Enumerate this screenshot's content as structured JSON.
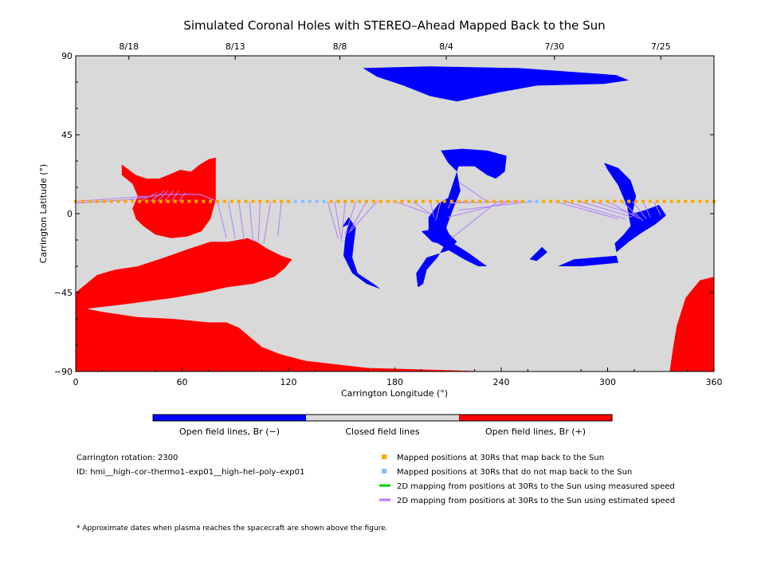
{
  "chart_data": {
    "type": "map",
    "title": "Simulated Coronal Holes with STEREO–Ahead Mapped Back to the Sun",
    "xlabel": "Carrington Longitude (°)",
    "ylabel": "Carrington Latitude (°)",
    "xlim": [
      0,
      360
    ],
    "ylim": [
      -90,
      90
    ],
    "x_ticks": [
      "0",
      "60",
      "120",
      "180",
      "240",
      "300",
      "360"
    ],
    "y_ticks": [
      "90",
      "45",
      "0",
      "−45",
      "−90"
    ],
    "date_axis": {
      "labels": [
        "8/18",
        "8/13",
        "8/8",
        "8/4",
        "7/30",
        "7/25"
      ],
      "longitudes": [
        30,
        90,
        149,
        209,
        270,
        330
      ]
    },
    "colors": {
      "closed": "#d9d9d9",
      "open_negative": "#0000ff",
      "open_positive": "#ff0000",
      "mapped": "#ffa500",
      "not_mapped": "#80c0ff",
      "measured_speed": "#00cc00",
      "estimated_speed": "#b080ff"
    },
    "colorbar": [
      {
        "label": "Open field lines, Br (−)",
        "color": "#0000ff"
      },
      {
        "label": "Closed field lines",
        "color": "#d9d9d9"
      },
      {
        "label": "Open field lines, Br (+)",
        "color": "#ff0000"
      }
    ],
    "trajectory_latitude": 7,
    "mapped_points": {
      "longitude_step": 4,
      "not_mapped_ranges": [
        [
          122,
          142
        ],
        [
          254,
          260
        ]
      ]
    },
    "regions": {
      "negative": [
        {
          "name": "north polar cap",
          "points": [
            [
              162,
              83
            ],
            [
              200,
              84
            ],
            [
              250,
              83
            ],
            [
              305,
              79
            ],
            [
              312,
              76
            ],
            [
              298,
              74
            ],
            [
              260,
              73
            ],
            [
              238,
              69
            ],
            [
              215,
              64
            ],
            [
              200,
              67
            ],
            [
              185,
              73
            ],
            [
              170,
              78
            ]
          ]
        },
        {
          "name": "central arc",
          "points": [
            [
              206,
              36
            ],
            [
              218,
              37
            ],
            [
              232,
              36
            ],
            [
              243,
              33
            ],
            [
              242,
              24
            ],
            [
              237,
              20
            ],
            [
              232,
              22
            ],
            [
              225,
              27
            ],
            [
              216,
              27
            ],
            [
              213,
              18
            ],
            [
              210,
              9
            ],
            [
              205,
              6
            ],
            [
              199,
              -2
            ],
            [
              199,
              -10
            ],
            [
              203,
              -16
            ],
            [
              209,
              -20
            ],
            [
              219,
              -26
            ],
            [
              227,
              -30
            ],
            [
              232,
              -30
            ],
            [
              221,
              -22
            ],
            [
              213,
              -17
            ],
            [
              209,
              -8
            ],
            [
              213,
              3
            ],
            [
              217,
              13
            ],
            [
              215,
              24
            ],
            [
              210,
              29
            ]
          ]
        },
        {
          "name": "southern lobe",
          "points": [
            [
              195,
              -10
            ],
            [
              207,
              -8
            ],
            [
              215,
              -16
            ],
            [
              210,
              -21
            ],
            [
              198,
              -25
            ],
            [
              192,
              -34
            ],
            [
              193,
              -42
            ],
            [
              196,
              -40
            ],
            [
              198,
              -32
            ],
            [
              204,
              -25
            ],
            [
              208,
              -18
            ],
            [
              201,
              -16
            ]
          ]
        },
        {
          "name": "eastern arc",
          "points": [
            [
              150,
              -8
            ],
            [
              154,
              -6
            ],
            [
              152,
              -14
            ],
            [
              151,
              -24
            ],
            [
              156,
              -34
            ],
            [
              164,
              -40
            ],
            [
              172,
              -43
            ],
            [
              168,
              -40
            ],
            [
              159,
              -34
            ],
            [
              156,
              -25
            ],
            [
              157,
              -16
            ],
            [
              158,
              -8
            ],
            [
              154,
              -2
            ]
          ]
        },
        {
          "name": "western hook",
          "points": [
            [
              298,
              29
            ],
            [
              306,
              26
            ],
            [
              313,
              19
            ],
            [
              316,
              10
            ],
            [
              314,
              0
            ],
            [
              321,
              2
            ],
            [
              329,
              5
            ],
            [
              333,
              -1
            ],
            [
              327,
              -6
            ],
            [
              319,
              -11
            ],
            [
              312,
              -16
            ],
            [
              305,
              -22
            ],
            [
              304,
              -17
            ],
            [
              309,
              -12
            ],
            [
              313,
              -7
            ],
            [
              311,
              4
            ],
            [
              306,
              16
            ],
            [
              300,
              25
            ]
          ]
        },
        {
          "name": "small spot",
          "points": [
            [
              281,
              -26
            ],
            [
              305,
              -24
            ],
            [
              306,
              -28
            ],
            [
              285,
              -30
            ],
            [
              272,
              -30
            ]
          ]
        },
        {
          "name": "tiny spot",
          "points": [
            [
              256,
              -26
            ],
            [
              263,
              -19
            ],
            [
              266,
              -22
            ],
            [
              260,
              -27
            ]
          ]
        }
      ],
      "positive": [
        {
          "name": "southern band",
          "points": [
            [
              0,
              -45
            ],
            [
              6,
              -40
            ],
            [
              12,
              -35
            ],
            [
              22,
              -32
            ],
            [
              35,
              -30
            ],
            [
              50,
              -25
            ],
            [
              64,
              -20
            ],
            [
              76,
              -16
            ],
            [
              86,
              -16
            ],
            [
              97,
              -14
            ],
            [
              102,
              -16
            ],
            [
              108,
              -20
            ],
            [
              116,
              -24
            ],
            [
              122,
              -26
            ],
            [
              118,
              -31
            ],
            [
              112,
              -36
            ],
            [
              100,
              -40
            ],
            [
              85,
              -42
            ],
            [
              72,
              -45
            ],
            [
              55,
              -48
            ],
            [
              40,
              -50
            ],
            [
              25,
              -52
            ],
            [
              8,
              -54
            ],
            [
              0,
              -56
            ]
          ]
        },
        {
          "name": "cusp loop",
          "points": [
            [
              26,
              28
            ],
            [
              34,
              22
            ],
            [
              40,
              20
            ],
            [
              47,
              20
            ],
            [
              52,
              22
            ],
            [
              59,
              25
            ],
            [
              65,
              24
            ],
            [
              70,
              28
            ],
            [
              75,
              31
            ],
            [
              79,
              32
            ],
            [
              79,
              8
            ],
            [
              76,
              -3
            ],
            [
              71,
              -10
            ],
            [
              63,
              -13
            ],
            [
              54,
              -14
            ],
            [
              45,
              -12
            ],
            [
              38,
              -7
            ],
            [
              34,
              -3
            ],
            [
              32,
              3
            ],
            [
              35,
              10
            ],
            [
              32,
              17
            ],
            [
              26,
              22
            ]
          ]
        },
        {
          "name": "south polar region",
          "points": [
            [
              0,
              -53
            ],
            [
              15,
              -56
            ],
            [
              35,
              -59
            ],
            [
              55,
              -60
            ],
            [
              75,
              -62
            ],
            [
              85,
              -62
            ],
            [
              92,
              -65
            ],
            [
              105,
              -76
            ],
            [
              115,
              -80
            ],
            [
              130,
              -84
            ],
            [
              165,
              -88
            ],
            [
              200,
              -89
            ],
            [
              235,
              -90
            ],
            [
              0,
              -90
            ]
          ]
        },
        {
          "name": "southeast corner",
          "points": [
            [
              335,
              -90
            ],
            [
              360,
              -90
            ],
            [
              360,
              -36
            ],
            [
              352,
              -38
            ],
            [
              344,
              -48
            ],
            [
              339,
              -64
            ],
            [
              337,
              -76
            ]
          ]
        }
      ]
    },
    "estimated_lines": [
      [
        [
          36,
          7
        ],
        [
          46,
          12
        ]
      ],
      [
        [
          42,
          7
        ],
        [
          50,
          13
        ]
      ],
      [
        [
          46,
          7
        ],
        [
          52,
          13
        ]
      ],
      [
        [
          50,
          7
        ],
        [
          55,
          13
        ]
      ],
      [
        [
          54,
          7
        ],
        [
          58,
          13
        ]
      ],
      [
        [
          58,
          7
        ],
        [
          62,
          12
        ]
      ],
      [
        [
          80,
          7
        ],
        [
          85,
          -14
        ]
      ],
      [
        [
          86,
          7
        ],
        [
          90,
          -14
        ]
      ],
      [
        [
          92,
          7
        ],
        [
          95,
          -15
        ]
      ],
      [
        [
          98,
          7
        ],
        [
          100,
          -16
        ]
      ],
      [
        [
          104,
          7
        ],
        [
          103,
          -16
        ]
      ],
      [
        [
          110,
          7
        ],
        [
          106,
          -17
        ]
      ],
      [
        [
          116,
          7
        ],
        [
          114,
          -13
        ]
      ],
      [
        [
          142,
          7
        ],
        [
          148,
          -14
        ]
      ],
      [
        [
          146,
          7
        ],
        [
          150,
          -16
        ]
      ],
      [
        [
          152,
          7
        ],
        [
          150,
          -14
        ]
      ],
      [
        [
          158,
          7
        ],
        [
          152,
          -12
        ]
      ],
      [
        [
          164,
          7
        ],
        [
          154,
          -11
        ]
      ],
      [
        [
          170,
          7
        ],
        [
          155,
          -10
        ]
      ],
      [
        [
          180,
          7
        ],
        [
          199,
          0
        ]
      ],
      [
        [
          190,
          7
        ],
        [
          200,
          0
        ]
      ],
      [
        [
          200,
          7
        ],
        [
          202,
          -2
        ]
      ],
      [
        [
          206,
          7
        ],
        [
          203,
          -4
        ]
      ],
      [
        [
          212,
          7
        ],
        [
          210,
          3
        ]
      ],
      [
        [
          220,
          7
        ],
        [
          212,
          6
        ]
      ],
      [
        [
          232,
          7
        ],
        [
          216,
          18
        ]
      ],
      [
        [
          238,
          7
        ],
        [
          212,
          -14
        ]
      ],
      [
        [
          246,
          7
        ],
        [
          210,
          -2
        ]
      ],
      [
        [
          250,
          7
        ],
        [
          212,
          6
        ]
      ],
      [
        [
          258,
          7
        ],
        [
          216,
          2
        ]
      ],
      [
        [
          270,
          7
        ],
        [
          306,
          -3
        ]
      ],
      [
        [
          276,
          7
        ],
        [
          310,
          -3
        ]
      ],
      [
        [
          284,
          7
        ],
        [
          314,
          -2
        ]
      ],
      [
        [
          292,
          7
        ],
        [
          316,
          -1
        ]
      ],
      [
        [
          300,
          7
        ],
        [
          318,
          -3
        ]
      ],
      [
        [
          308,
          7
        ],
        [
          320,
          -4
        ]
      ],
      [
        [
          314,
          7
        ],
        [
          322,
          -3
        ]
      ],
      [
        [
          320,
          7
        ],
        [
          324,
          -2
        ]
      ],
      [
        [
          326,
          7
        ],
        [
          330,
          -1
        ]
      ],
      [
        [
          0,
          7
        ],
        [
          40,
          10
        ]
      ]
    ],
    "estimated_line_top": [
      [
        0,
        6
      ],
      [
        30,
        8
      ],
      [
        50,
        11
      ],
      [
        70,
        11
      ],
      [
        80,
        7
      ]
    ],
    "info_lines": [
      "Carrington rotation: 2300",
      "ID: hmi__high–cor–thermo1–exp01__high–hel–poly–exp01"
    ],
    "legend": [
      {
        "label": "Mapped positions at 30Rs that map back to the Sun",
        "color": "#ffa500",
        "kind": "square"
      },
      {
        "label": "Mapped positions at 30Rs that do not map back to the Sun",
        "color": "#80c0ff",
        "kind": "square"
      },
      {
        "label": "2D mapping from positions at 30Rs to the Sun using measured speed",
        "color": "#00cc00",
        "kind": "line"
      },
      {
        "label": "2D mapping from positions at 30Rs to the Sun using estimated speed",
        "color": "#b080ff",
        "kind": "line"
      }
    ],
    "footnote": "* Approximate dates when plasma reaches the spacecraft are shown above the figure."
  }
}
